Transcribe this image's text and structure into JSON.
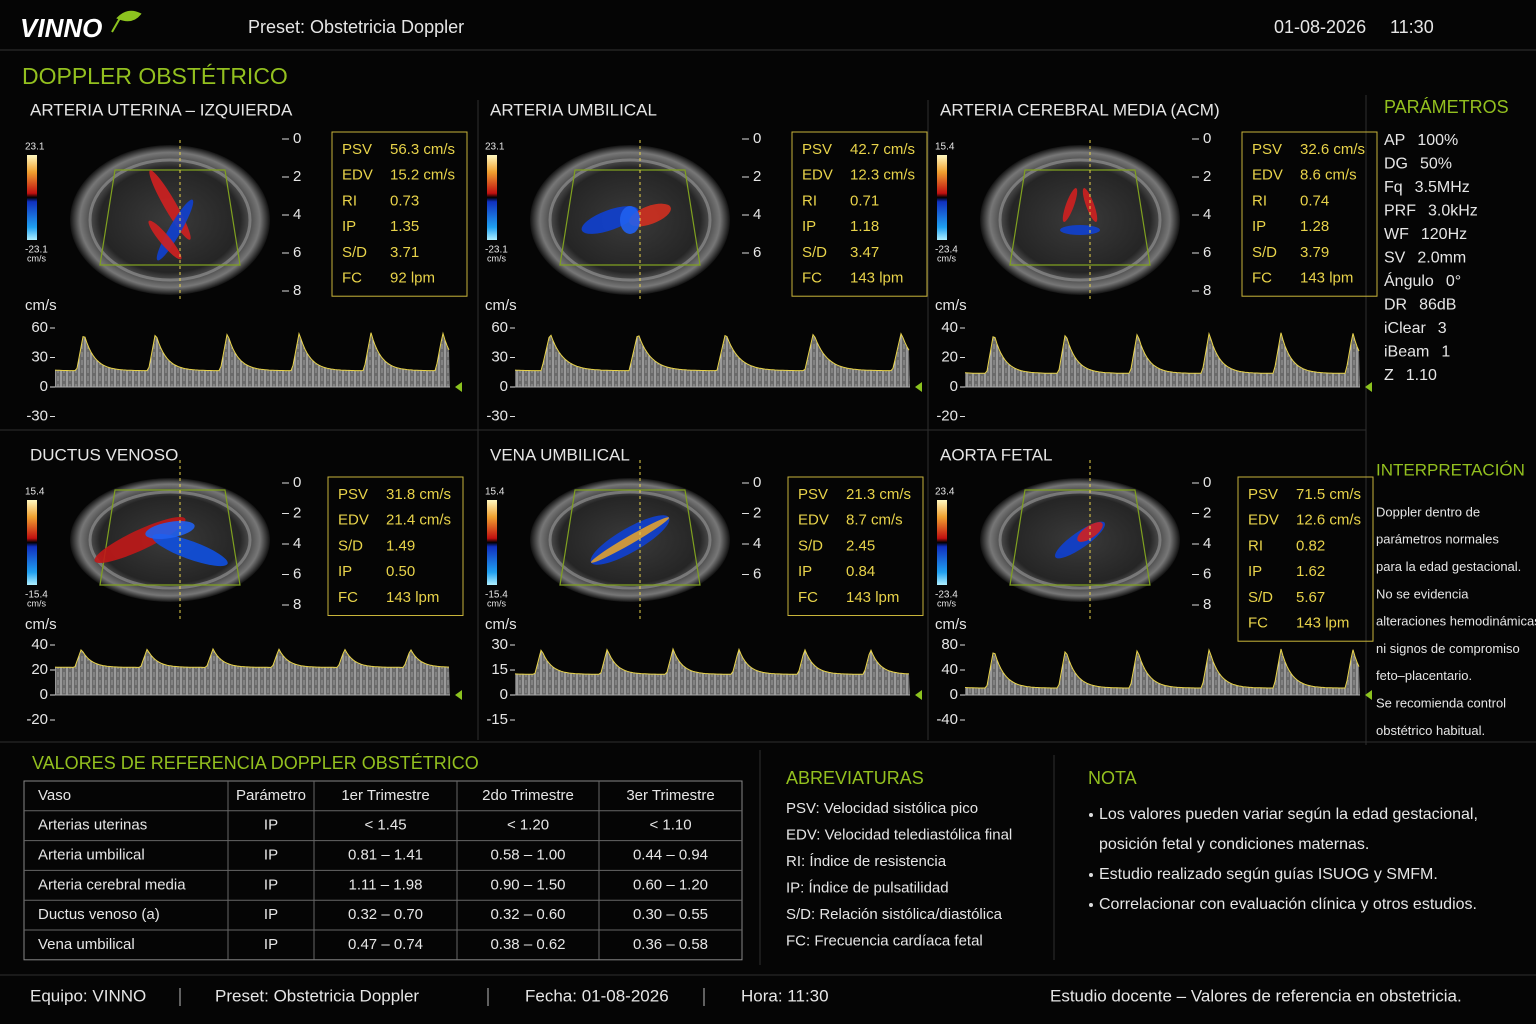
{
  "header": {
    "logo": "VINNO",
    "preset": "Preset: Obstetricia Doppler",
    "date": "01-08-2026",
    "time": "11:30"
  },
  "title": "DOPPLER OBSTÉTRICO",
  "panels": [
    {
      "name": "ARTERIA UTERINA – IZQUIERDA",
      "scale_max": "23.1",
      "scale_min": "-23.1",
      "scale_unit": "cm/s",
      "depth_ticks": [
        0,
        2,
        4,
        6,
        8
      ],
      "measurements": [
        [
          "PSV",
          "56.3 cm/s"
        ],
        [
          "EDV",
          "15.2 cm/s"
        ],
        [
          "RI",
          "0.73"
        ],
        [
          "IP",
          "1.35"
        ],
        [
          "S/D",
          "3.71"
        ],
        [
          "FC",
          "92 lpm"
        ]
      ],
      "spectrum_unit": "cm/s",
      "spectrum_ticks": [
        60,
        30,
        0,
        -30
      ]
    },
    {
      "name": "ARTERIA UMBILICAL",
      "scale_max": "23.1",
      "scale_min": "-23.1",
      "scale_unit": "cm/s",
      "depth_ticks": [
        0,
        2,
        4,
        6
      ],
      "measurements": [
        [
          "PSV",
          "42.7 cm/s"
        ],
        [
          "EDV",
          "12.3 cm/s"
        ],
        [
          "RI",
          "0.71"
        ],
        [
          "IP",
          "1.18"
        ],
        [
          "S/D",
          "3.47"
        ],
        [
          "FC",
          "143 lpm"
        ]
      ],
      "spectrum_unit": "cm/s",
      "spectrum_ticks": [
        60,
        30,
        0,
        -30
      ]
    },
    {
      "name": "ARTERIA CEREBRAL MEDIA (ACM)",
      "scale_max": "15.4",
      "scale_min": "-23.4",
      "scale_unit": "cm/s",
      "depth_ticks": [
        0,
        2,
        4,
        6,
        8
      ],
      "measurements": [
        [
          "PSV",
          "32.6 cm/s"
        ],
        [
          "EDV",
          "8.6 cm/s"
        ],
        [
          "RI",
          "0.74"
        ],
        [
          "IP",
          "1.28"
        ],
        [
          "S/D",
          "3.79"
        ],
        [
          "FC",
          "143 lpm"
        ]
      ],
      "spectrum_unit": "cm/s",
      "spectrum_ticks": [
        40,
        20,
        0,
        -20
      ]
    },
    {
      "name": "DUCTUS VENOSO",
      "scale_max": "15.4",
      "scale_min": "-15.4",
      "scale_unit": "cm/s",
      "depth_ticks": [
        0,
        2,
        4,
        6,
        8
      ],
      "measurements": [
        [
          "PSV",
          "31.8 cm/s"
        ],
        [
          "EDV",
          "21.4 cm/s"
        ],
        [
          "S/D",
          "1.49"
        ],
        [
          "IP",
          "0.50"
        ],
        [
          "FC",
          "143 lpm"
        ]
      ],
      "spectrum_unit": "cm/s",
      "spectrum_ticks": [
        40,
        20,
        0,
        -20
      ]
    },
    {
      "name": "VENA UMBILICAL",
      "scale_max": "15.4",
      "scale_min": "-15.4",
      "scale_unit": "cm/s",
      "depth_ticks": [
        0,
        2,
        4,
        6
      ],
      "measurements": [
        [
          "PSV",
          "21.3 cm/s"
        ],
        [
          "EDV",
          "8.7 cm/s"
        ],
        [
          "S/D",
          "2.45"
        ],
        [
          "IP",
          "0.84"
        ],
        [
          "FC",
          "143 lpm"
        ]
      ],
      "spectrum_unit": "cm/s",
      "spectrum_ticks": [
        30,
        15,
        0,
        -15
      ]
    },
    {
      "name": "AORTA FETAL",
      "scale_max": "23.4",
      "scale_min": "-23.4",
      "scale_unit": "cm/s",
      "depth_ticks": [
        0,
        2,
        4,
        6,
        8
      ],
      "measurements": [
        [
          "PSV",
          "71.5 cm/s"
        ],
        [
          "EDV",
          "12.6 cm/s"
        ],
        [
          "RI",
          "0.82"
        ],
        [
          "IP",
          "1.62"
        ],
        [
          "S/D",
          "5.67"
        ],
        [
          "FC",
          "143 lpm"
        ]
      ],
      "spectrum_unit": "cm/s",
      "spectrum_ticks": [
        80,
        40,
        0,
        -40
      ]
    }
  ],
  "parameters": {
    "title": "PARÁMETROS",
    "rows": [
      [
        "AP",
        "100%"
      ],
      [
        "DG",
        "50%"
      ],
      [
        "Fq",
        "3.5MHz"
      ],
      [
        "PRF",
        "3.0kHz"
      ],
      [
        "WF",
        "120Hz"
      ],
      [
        "SV",
        "2.0mm"
      ],
      [
        "Ángulo",
        "0°"
      ],
      [
        "DR",
        "86dB"
      ],
      [
        "iClear",
        "3"
      ],
      [
        "iBeam",
        "1"
      ],
      [
        "Z",
        "1.10"
      ]
    ]
  },
  "interpretation": {
    "title": "INTERPRETACIÓN",
    "lines": [
      "Doppler dentro de",
      "parámetros normales",
      "para la edad gestacional.",
      "No se evidencia",
      "alteraciones hemodinámicas",
      "ni signos de compromiso",
      "feto–placentario.",
      "Se recomienda control",
      "obstétrico habitual."
    ]
  },
  "reference": {
    "title": "VALORES DE REFERENCIA DOPPLER OBSTÉTRICO",
    "header": [
      "Vaso",
      "Parámetro",
      "1er Trimestre",
      "2do Trimestre",
      "3er Trimestre"
    ],
    "rows": [
      [
        "Arterias uterinas",
        "IP",
        "< 1.45",
        "< 1.20",
        "< 1.10"
      ],
      [
        "Arteria umbilical",
        "IP",
        "0.81 – 1.41",
        "0.58 – 1.00",
        "0.44 – 0.94"
      ],
      [
        "Arteria cerebral media",
        "IP",
        "1.11 – 1.98",
        "0.90 – 1.50",
        "0.60 – 1.20"
      ],
      [
        "Ductus venoso (a)",
        "IP",
        "0.32 – 0.70",
        "0.32 – 0.60",
        "0.30 – 0.55"
      ],
      [
        "Vena umbilical",
        "IP",
        "0.47 – 0.74",
        "0.38 – 0.62",
        "0.36 – 0.58"
      ]
    ]
  },
  "abbreviations": {
    "title": "ABREVIATURAS",
    "items": [
      "PSV: Velocidad sistólica pico",
      "EDV: Velocidad telediastólica final",
      "RI: Índice de resistencia",
      "IP: Índice de pulsatilidad",
      "S/D: Relación sistólica/diastólica",
      "FC: Frecuencia cardíaca fetal"
    ]
  },
  "notes": {
    "title": "NOTA",
    "items": [
      [
        "Los valores pueden variar según la edad gestacional,",
        "posición fetal y condiciones maternas."
      ],
      [
        "Estudio realizado según guías ISUOG y SMFM."
      ],
      [
        "Correlacionar con evaluación clínica y otros estudios."
      ]
    ]
  },
  "footer": {
    "items": [
      "Equipo: VINNO",
      "Preset: Obstetricia Doppler",
      "Fecha: 01-08-2026",
      "Hora: 11:30"
    ],
    "right": "Estudio docente – Valores de referencia en obstetricia."
  }
}
